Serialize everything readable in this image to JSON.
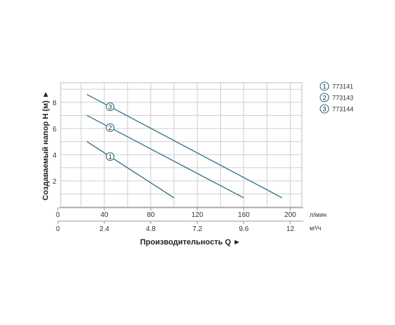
{
  "chart_data": {
    "type": "line",
    "title": "",
    "xlabel": "Производительность Q ►",
    "ylabel": "Создаваемый напор H (м) ►",
    "x_unit_primary": "л/мин",
    "x_unit_secondary": "м³/ч",
    "xlim": [
      0,
      210
    ],
    "ylim": [
      0,
      9.5
    ],
    "x_ticks_primary": [
      "0",
      "40",
      "80",
      "120",
      "160",
      "200"
    ],
    "x_ticks_secondary": [
      "0",
      "2.4",
      "4.8",
      "7.2",
      "9.6",
      "12"
    ],
    "y_ticks": [
      "2",
      "4",
      "6",
      "8"
    ],
    "grid": true,
    "legend_position": "top-right",
    "line_color": "#2e6f86",
    "series": [
      {
        "name": "773141",
        "marker": "1",
        "x": [
          25,
          100
        ],
        "y": [
          5.0,
          0.7
        ],
        "marker_x": 45
      },
      {
        "name": "773143",
        "marker": "2",
        "x": [
          25,
          160
        ],
        "y": [
          7.0,
          0.7
        ],
        "marker_x": 45
      },
      {
        "name": "773144",
        "marker": "3",
        "x": [
          25,
          193
        ],
        "y": [
          8.6,
          0.7
        ],
        "marker_x": 45
      }
    ]
  }
}
